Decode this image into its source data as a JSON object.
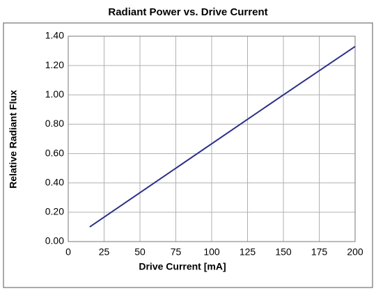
{
  "chart_data": {
    "type": "line",
    "title": "Radiant Power vs. Drive Current",
    "x_label": "Drive Current [mA]",
    "y_label": "Relative Radiant Flux",
    "x": [
      15,
      150,
      200
    ],
    "series": [
      {
        "name": "Relative Radiant Flux",
        "color": "#2b2f8a",
        "values": [
          0.1,
          1.0,
          1.33
        ]
      }
    ],
    "xlim": [
      0,
      200
    ],
    "xticks": [
      0,
      25,
      50,
      75,
      100,
      125,
      150,
      175,
      200
    ],
    "ylim": [
      0,
      1.4
    ],
    "yticks": [
      {
        "value": 0,
        "label": "0.00"
      },
      {
        "value": 0.2,
        "label": "0.20"
      },
      {
        "value": 0.4,
        "label": "0.40"
      },
      {
        "value": 0.6,
        "label": "0.60"
      },
      {
        "value": 0.8,
        "label": "0.80"
      },
      {
        "value": 1.0,
        "label": "1.00"
      },
      {
        "value": 1.2,
        "label": "1.20"
      },
      {
        "value": 1.4,
        "label": "1.40"
      }
    ],
    "grid": true
  }
}
